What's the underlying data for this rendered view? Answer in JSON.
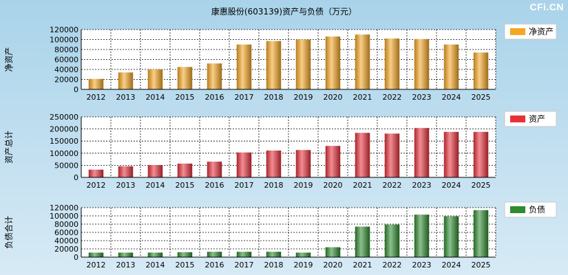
{
  "title": "康惠股份(603139)资产与负债（万元）",
  "watermark": "CFi.CN",
  "chart_data": [
    {
      "type": "bar",
      "ylabel": "净资产",
      "legend": "净资产",
      "color": "#f5a623",
      "categories": [
        "2012",
        "2013",
        "2014",
        "2015",
        "2016",
        "2017",
        "2018",
        "2019",
        "2020",
        "2021",
        "2022",
        "2023",
        "2024",
        "2025"
      ],
      "values": [
        21000,
        34000,
        40000,
        45000,
        52000,
        90000,
        97000,
        100000,
        106000,
        110000,
        102000,
        101000,
        90000,
        74000
      ],
      "ylim": [
        0,
        120000
      ],
      "yticks": [
        0,
        20000,
        40000,
        60000,
        80000,
        100000,
        120000
      ],
      "grid": true,
      "legend_position": "right"
    },
    {
      "type": "bar",
      "ylabel": "资产总计",
      "legend": "资产",
      "color": "#e8303a",
      "categories": [
        "2012",
        "2013",
        "2014",
        "2015",
        "2016",
        "2017",
        "2018",
        "2019",
        "2020",
        "2021",
        "2022",
        "2023",
        "2024",
        "2025"
      ],
      "values": [
        32000,
        46000,
        51000,
        57000,
        65000,
        103000,
        111000,
        113000,
        130000,
        184000,
        181000,
        204000,
        188000,
        188000
      ],
      "ylim": [
        0,
        250000
      ],
      "yticks": [
        0,
        50000,
        100000,
        150000,
        200000,
        250000
      ],
      "grid": true,
      "legend_position": "right"
    },
    {
      "type": "bar",
      "ylabel": "负债合计",
      "legend": "负债",
      "color": "#2e8b2e",
      "categories": [
        "2012",
        "2013",
        "2014",
        "2015",
        "2016",
        "2017",
        "2018",
        "2019",
        "2020",
        "2021",
        "2022",
        "2023",
        "2024",
        "2025"
      ],
      "values": [
        11000,
        11000,
        11000,
        12000,
        13000,
        13000,
        13000,
        11000,
        24000,
        74000,
        79000,
        103000,
        99000,
        114000
      ],
      "ylim": [
        0,
        120000
      ],
      "yticks": [
        0,
        20000,
        40000,
        60000,
        80000,
        100000,
        120000
      ],
      "grid": true,
      "legend_position": "right"
    }
  ]
}
